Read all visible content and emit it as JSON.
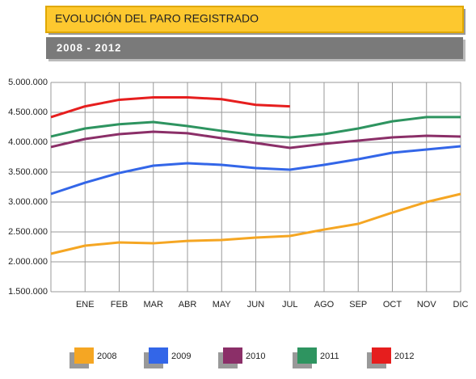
{
  "chart_data": {
    "type": "line",
    "title": "EVOLUCIÓN DEL PARO REGISTRADO",
    "subtitle": "2008 - 2012",
    "categories": [
      null,
      "ENE",
      "FEB",
      "MAR",
      "ABR",
      "MAY",
      "JUN",
      "JUL",
      "AGO",
      "SEP",
      "OCT",
      "NOV",
      "DIC"
    ],
    "series": [
      {
        "name": "2008",
        "color": "#f5a623",
        "values": [
          2135000,
          2270000,
          2324000,
          2310000,
          2350000,
          2365000,
          2405000,
          2432000,
          2540000,
          2635000,
          2824000,
          3000000,
          3135000
        ]
      },
      {
        "name": "2009",
        "color": "#3366e8",
        "values": [
          3135000,
          3324000,
          3486000,
          3608000,
          3648000,
          3622000,
          3567000,
          3540000,
          3622000,
          3716000,
          3824000,
          3878000,
          3932000
        ]
      },
      {
        "name": "2010",
        "color": "#8b2f68",
        "values": [
          3920000,
          4054000,
          4135000,
          4176000,
          4150000,
          4068000,
          3986000,
          3905000,
          3973000,
          4027000,
          4081000,
          4108000,
          4095000
        ]
      },
      {
        "name": "2011",
        "color": "#2e9460",
        "values": [
          4095000,
          4230000,
          4300000,
          4338000,
          4270000,
          4190000,
          4120000,
          4080000,
          4135000,
          4230000,
          4350000,
          4420000,
          4420000
        ]
      },
      {
        "name": "2012",
        "color": "#e61e1e",
        "values": [
          4420000,
          4600000,
          4710000,
          4750000,
          4750000,
          4720000,
          4625000,
          4600000,
          null,
          null,
          null,
          null,
          null
        ]
      }
    ],
    "ylim": [
      1500000,
      5000000
    ],
    "yticks": [
      {
        "value": 1500000,
        "label": "1.500.000"
      },
      {
        "value": 2000000,
        "label": "2.000.000"
      },
      {
        "value": 2500000,
        "label": "2.500.000"
      },
      {
        "value": 3000000,
        "label": "3.000.000"
      },
      {
        "value": 3500000,
        "label": "3.500.000"
      },
      {
        "value": 4000000,
        "label": "4.000.000"
      },
      {
        "value": 4500000,
        "label": "4.500.000"
      },
      {
        "value": 5000000,
        "label": "5.000.000"
      }
    ],
    "grid": true
  }
}
